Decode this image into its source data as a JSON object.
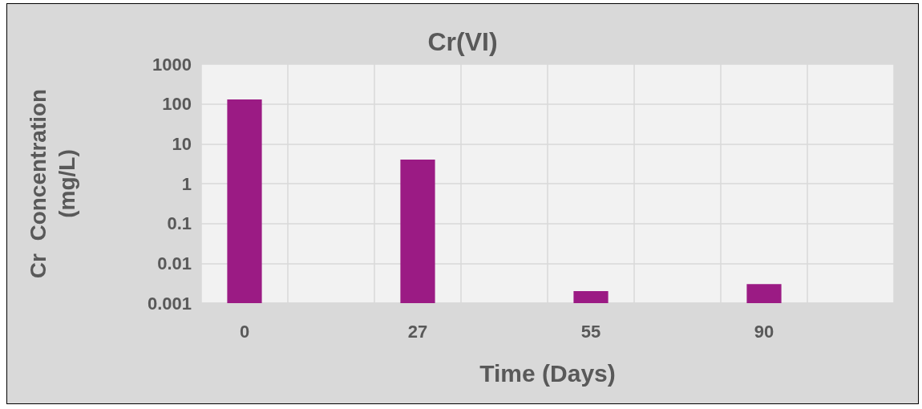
{
  "chart_data": {
    "type": "bar",
    "title": "Cr(VI)",
    "xlabel": "Time (Days)",
    "ylabel": "Cr  Concentration\n(mg/L)",
    "categories": [
      "0",
      null,
      "27",
      null,
      "55",
      null,
      "90",
      null
    ],
    "values": [
      130,
      null,
      4,
      null,
      0.002,
      null,
      0.003,
      null
    ],
    "color": "#9b1b84",
    "log": "y",
    "ylim": [
      0.001,
      1000
    ],
    "yticks": [
      0.001,
      0.01,
      0.1,
      1,
      10,
      100,
      1000
    ],
    "grid": true
  }
}
